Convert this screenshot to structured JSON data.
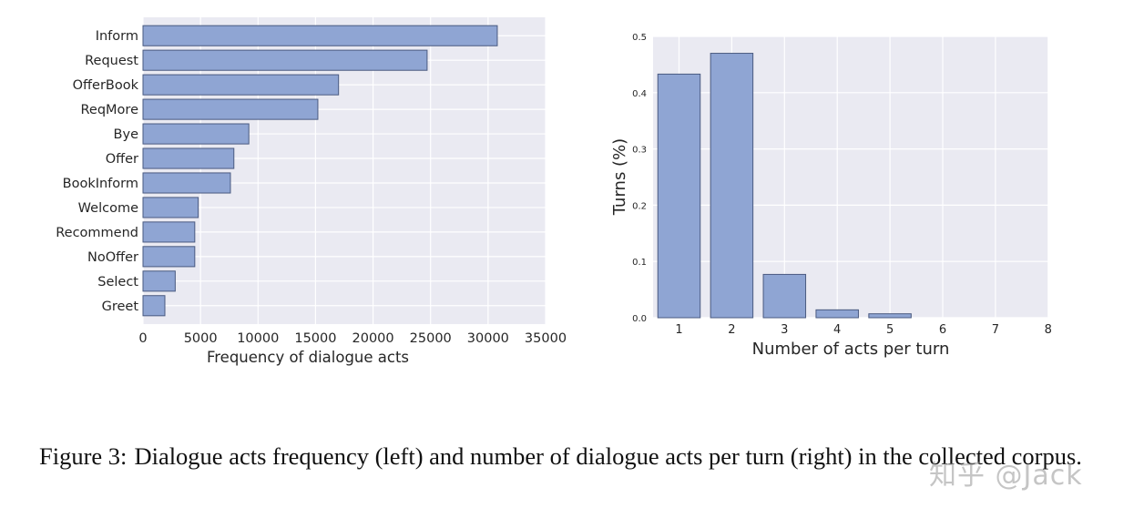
{
  "chart_data": [
    {
      "type": "bar",
      "orientation": "horizontal",
      "categories": [
        "Inform",
        "Request",
        "OfferBook",
        "ReqMore",
        "Bye",
        "Offer",
        "BookInform",
        "Welcome",
        "Recommend",
        "NoOffer",
        "Select",
        "Greet"
      ],
      "values": [
        30800,
        24700,
        17000,
        15200,
        9200,
        7900,
        7600,
        4800,
        4500,
        4500,
        2800,
        1900
      ],
      "xlabel": "Frequency of dialogue acts",
      "ylabel": "",
      "xlim": [
        0,
        35000
      ],
      "xticks": [
        "0",
        "5000",
        "10000",
        "15000",
        "20000",
        "25000",
        "30000",
        "35000"
      ],
      "grid": true,
      "bar_color": "#8fa5d3"
    },
    {
      "type": "bar",
      "categories": [
        "1",
        "2",
        "3",
        "4",
        "5",
        "6",
        "7",
        "8"
      ],
      "values": [
        0.433,
        0.47,
        0.077,
        0.014,
        0.007,
        0,
        0,
        0
      ],
      "xlabel": "Number of acts per turn",
      "ylabel": "Turns (%)",
      "ylim": [
        0,
        0.5
      ],
      "yticks": [
        "0.0",
        "0.1",
        "0.2",
        "0.3",
        "0.4",
        "0.5"
      ],
      "grid": true,
      "bar_color": "#8fa5d3"
    }
  ],
  "caption": {
    "label": "Figure 3:",
    "text": "Dialogue acts frequency (left) and number of dialogue acts per turn (right) in the collected corpus."
  },
  "watermark": "知乎 @Jack",
  "colors": {
    "plot_bg": "#eaeaf2",
    "grid": "#ffffff",
    "bar": "#8fa5d3",
    "bar_edge": "#4a5a80"
  }
}
